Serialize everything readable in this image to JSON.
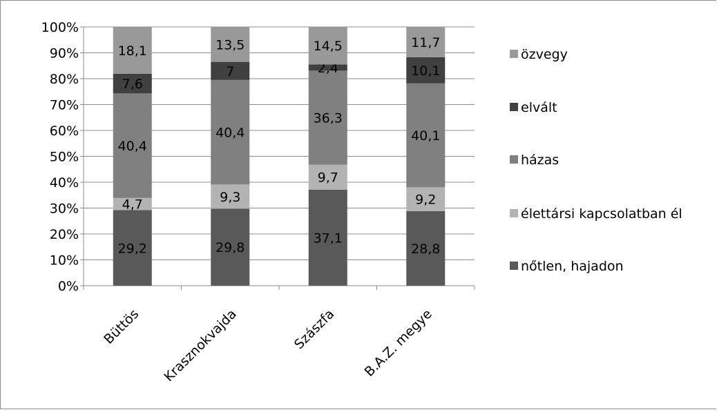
{
  "chart_data": {
    "type": "bar",
    "stacked": true,
    "percent_stacked": true,
    "categories": [
      "Büttös",
      "Krasznokvajda",
      "Szászfa",
      "B.A.Z. megye"
    ],
    "series": [
      {
        "name": "nőtlen, hajadon",
        "values": [
          29.2,
          29.8,
          37.1,
          28.8
        ],
        "color": "#595959",
        "labels": [
          "29,2",
          "29,8",
          "37,1",
          "28,8"
        ]
      },
      {
        "name": "élettársi kapcsolatban él",
        "values": [
          4.7,
          9.3,
          9.7,
          9.2
        ],
        "color": "#b3b3b3",
        "labels": [
          "4,7",
          "9,3",
          "9,7",
          "9,2"
        ]
      },
      {
        "name": "házas",
        "values": [
          40.4,
          40.4,
          36.3,
          40.1
        ],
        "color": "#808080",
        "labels": [
          "40,4",
          "40,4",
          "36,3",
          "40,1"
        ]
      },
      {
        "name": "elvált",
        "values": [
          7.6,
          7,
          2.4,
          10.1
        ],
        "color": "#404040",
        "labels": [
          "7,6",
          "7",
          "2,4",
          "10,1"
        ]
      },
      {
        "name": "özvegy",
        "values": [
          18.1,
          13.5,
          14.5,
          11.7
        ],
        "color": "#999999",
        "labels": [
          "18,1",
          "13,5",
          "14,5",
          "11,7"
        ]
      }
    ],
    "yticks": [
      "0%",
      "10%",
      "20%",
      "30%",
      "40%",
      "50%",
      "60%",
      "70%",
      "80%",
      "90%",
      "100%"
    ],
    "ylim": [
      0,
      100
    ],
    "grid": true,
    "legend_position": "right",
    "title": "",
    "xlabel": "",
    "ylabel": ""
  }
}
